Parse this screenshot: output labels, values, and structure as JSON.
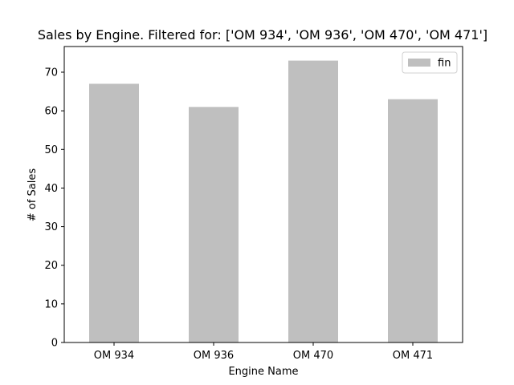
{
  "chart_data": {
    "type": "bar",
    "title": "Sales by Engine. Filtered for: ['OM 934', 'OM 936', 'OM 470', 'OM 471']",
    "xlabel": "Engine Name",
    "ylabel": "# of Sales",
    "categories": [
      "OM 934",
      "OM 936",
      "OM 470",
      "OM 471"
    ],
    "series": [
      {
        "name": "fin",
        "values": [
          67,
          61,
          73,
          63
        ],
        "color": "#bfbfbf"
      }
    ],
    "ylim": [
      0,
      76.65
    ],
    "yticks": [
      0,
      10,
      20,
      30,
      40,
      50,
      60,
      70
    ],
    "grid": false,
    "legend_position": "top-right"
  }
}
